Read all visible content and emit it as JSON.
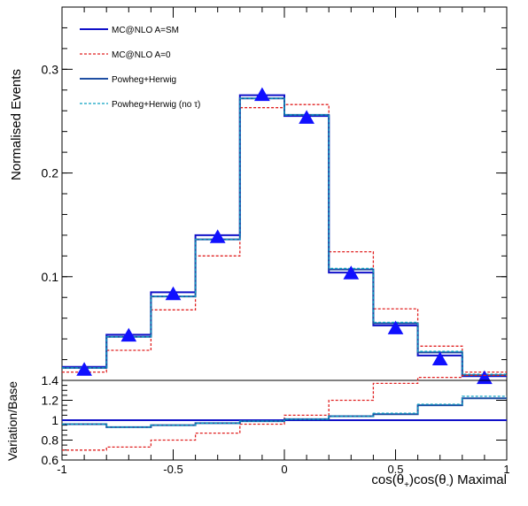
{
  "chart_data": [
    {
      "type": "line",
      "panel": "main",
      "ylabel": "Normalised Events",
      "ylim": [
        0.0,
        0.36
      ],
      "xlim": [
        -1,
        1
      ],
      "yticks": [
        0.1,
        0.2,
        0.3
      ],
      "ytick_labels": [
        "0.1",
        "0.2",
        "0.3"
      ],
      "grid": false,
      "legend_position": "top-left",
      "bin_edges": [
        -1.0,
        -0.8,
        -0.6,
        -0.4,
        -0.2,
        0.0,
        0.2,
        0.4,
        0.6,
        0.8,
        1.0
      ],
      "series": [
        {
          "name": "MC@NLO A=SM",
          "color": "#1010c8",
          "style": "solid",
          "values": [
            0.013,
            0.044,
            0.085,
            0.14,
            0.275,
            0.255,
            0.104,
            0.053,
            0.024,
            0.004
          ]
        },
        {
          "name": "MC@NLO A=0",
          "color": "#e02020",
          "style": "dashed",
          "values": [
            0.008,
            0.029,
            0.068,
            0.12,
            0.263,
            0.266,
            0.124,
            0.069,
            0.033,
            0.008
          ]
        },
        {
          "name": "Powheg+Herwig",
          "color": "#1f4fa3",
          "style": "solid",
          "values": [
            0.012,
            0.042,
            0.081,
            0.136,
            0.272,
            0.256,
            0.107,
            0.055,
            0.027,
            0.005
          ]
        },
        {
          "name": "Powheg+Herwig (no    τ)",
          "color": "#0aa0c0",
          "style": "dashed",
          "values": [
            0.012,
            0.042,
            0.081,
            0.136,
            0.272,
            0.256,
            0.108,
            0.056,
            0.028,
            0.006
          ]
        }
      ],
      "markers": {
        "shape": "triangle",
        "color": "#1010ff",
        "x": [
          -0.9,
          -0.7,
          -0.5,
          -0.3,
          -0.1,
          0.1,
          0.3,
          0.5,
          0.7,
          0.9
        ],
        "y": [
          0.01,
          0.043,
          0.083,
          0.138,
          0.275,
          0.253,
          0.103,
          0.05,
          0.02,
          0.002
        ]
      }
    },
    {
      "type": "line",
      "panel": "ratio",
      "xlabel": "cos(θ+)cos(θ-) Maximal",
      "ylabel": "Variation/Base",
      "ylim": [
        0.6,
        1.4
      ],
      "xlim": [
        -1,
        1
      ],
      "yticks": [
        0.6,
        0.8,
        1.0,
        1.2,
        1.4
      ],
      "ytick_labels": [
        "0.6",
        "0.8",
        "1",
        "1.2",
        "1.4"
      ],
      "xticks": [
        -1,
        -0.5,
        0,
        0.5,
        1
      ],
      "xtick_labels": [
        "-1",
        "-0.5",
        "0",
        "0.5",
        "1"
      ],
      "reference_line": 1.0,
      "bin_edges": [
        -1.0,
        -0.8,
        -0.6,
        -0.4,
        -0.2,
        0.0,
        0.2,
        0.4,
        0.6,
        0.8,
        1.0
      ],
      "series": [
        {
          "name": "MC@NLO A=SM",
          "color": "#1010c8",
          "style": "solid",
          "values": [
            1.0,
            1.0,
            1.0,
            1.0,
            1.0,
            1.0,
            1.0,
            1.0,
            1.0,
            1.0
          ]
        },
        {
          "name": "MC@NLO A=0",
          "color": "#e02020",
          "style": "dashed",
          "values": [
            0.7,
            0.73,
            0.8,
            0.87,
            0.96,
            1.05,
            1.2,
            1.37,
            1.43,
            1.45
          ]
        },
        {
          "name": "Powheg+Herwig",
          "color": "#1f4fa3",
          "style": "solid",
          "values": [
            0.96,
            0.93,
            0.95,
            0.97,
            0.99,
            1.01,
            1.04,
            1.06,
            1.15,
            1.22
          ]
        },
        {
          "name": "Powheg+Herwig (no    τ)",
          "color": "#0aa0c0",
          "style": "dashed",
          "values": [
            0.96,
            0.93,
            0.95,
            0.97,
            0.99,
            1.01,
            1.04,
            1.07,
            1.16,
            1.24
          ]
        }
      ]
    }
  ],
  "xlabel_parts": {
    "pre": "cos(θ",
    "sub1": "+",
    "mid": ")cos(θ",
    "sub2": "-",
    "post": ") Maximal"
  }
}
